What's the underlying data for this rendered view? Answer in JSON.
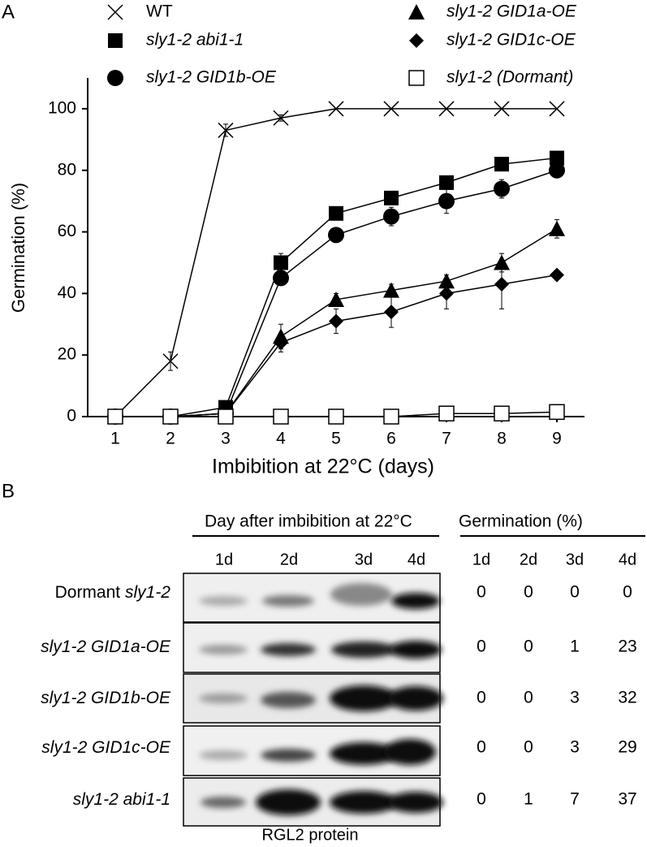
{
  "chart_data": {
    "type": "line",
    "panel_label": "A",
    "xlabel": "Imbibition at 22°C (days)",
    "ylabel": "Germination (%)",
    "x": [
      1,
      2,
      3,
      4,
      5,
      6,
      7,
      8,
      9
    ],
    "xlim": [
      0.5,
      9.5
    ],
    "xticks": [
      1,
      2,
      3,
      4,
      5,
      6,
      7,
      8,
      9
    ],
    "ylim": [
      0,
      110
    ],
    "yticks": [
      0,
      20,
      40,
      60,
      80,
      100
    ],
    "legend": "top",
    "series": [
      {
        "name": "WT",
        "marker": "x",
        "color": "#000000",
        "values": [
          0,
          18,
          93,
          97,
          100,
          100,
          100,
          100,
          100
        ],
        "errors": [
          0,
          3,
          2,
          1,
          0,
          0,
          0,
          0,
          0
        ]
      },
      {
        "name": "sly1-2 abi1-1",
        "marker": "square",
        "color": "#000000",
        "values": [
          0,
          0,
          3,
          50,
          66,
          71,
          76,
          82,
          84
        ],
        "errors": [
          0,
          0,
          1,
          3,
          1,
          1,
          1,
          1,
          1
        ]
      },
      {
        "name": "sly1-2 GID1b-OE",
        "marker": "circle",
        "color": "#000000",
        "values": [
          0,
          0,
          1,
          45,
          59,
          65,
          70,
          74,
          80
        ],
        "errors": [
          0,
          0,
          1,
          2,
          1,
          3,
          4,
          3,
          2
        ]
      },
      {
        "name": "sly1-2 GID1a-OE",
        "marker": "triangle",
        "color": "#000000",
        "values": [
          0,
          0,
          1,
          26,
          38,
          41,
          44,
          50,
          61
        ],
        "errors": [
          0,
          0,
          1,
          4,
          2,
          2,
          2,
          3,
          3
        ]
      },
      {
        "name": "sly1-2 GID1c-OE",
        "marker": "diamond",
        "color": "#000000",
        "values": [
          0,
          0,
          1,
          24,
          31,
          34,
          40,
          43,
          46
        ],
        "errors": [
          0,
          0,
          1,
          3,
          4,
          5,
          5,
          8,
          1
        ]
      },
      {
        "name": "sly1-2 (Dormant)",
        "marker": "open-square",
        "color": "#000000",
        "values": [
          0,
          0,
          0,
          0,
          0,
          0,
          1,
          1,
          1.5
        ],
        "errors": [
          0,
          0,
          0,
          0,
          0,
          0,
          0,
          0,
          0
        ]
      }
    ]
  },
  "blot": {
    "panel_label": "B",
    "header": "Day after imbibition at 22°C",
    "germination_header": "Germination (%)",
    "lane_labels": [
      "1d",
      "2d",
      "3d",
      "4d"
    ],
    "germination_days": [
      "1d",
      "2d",
      "3d",
      "4d"
    ],
    "rows": [
      {
        "prefix": "Dormant",
        "label": "sly1-2",
        "germination": [
          "0",
          "0",
          "0",
          "0"
        ]
      },
      {
        "label": "sly1-2 GID1a-OE",
        "germination": [
          "0",
          "0",
          "1",
          "23"
        ]
      },
      {
        "label": "sly1-2 GID1b-OE",
        "germination": [
          "0",
          "0",
          "3",
          "32"
        ]
      },
      {
        "label": "sly1-2 GID1c-OE",
        "germination": [
          "0",
          "0",
          "3",
          "29"
        ]
      },
      {
        "label": "sly1-2 abi1-1",
        "germination": [
          "0",
          "1",
          "7",
          "37"
        ]
      }
    ],
    "caption": "RGL2 protein"
  }
}
